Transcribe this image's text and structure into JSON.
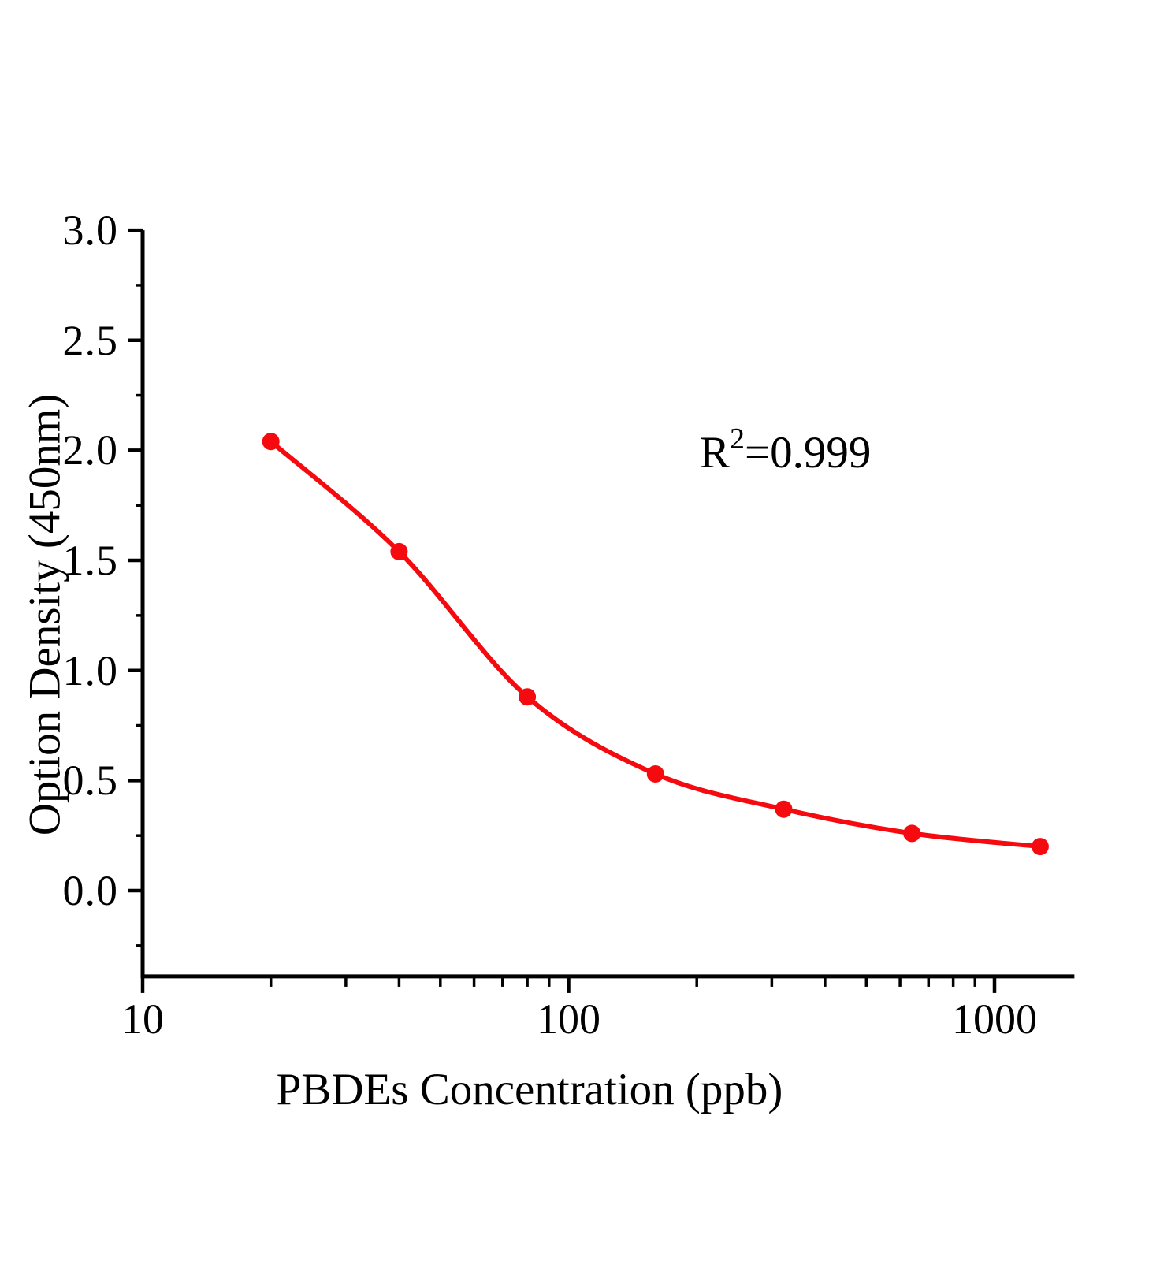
{
  "figure": {
    "background": "#ffffff",
    "axis_color": "#000000"
  },
  "chart_data": {
    "type": "scatter",
    "title": "",
    "xlabel": "PBDEs Concentration（ppb）",
    "ylabel": "Option Density（450nm）",
    "x_scale": "log",
    "xlim": [
      10,
      1540
    ],
    "ylim": [
      -0.39,
      3.0
    ],
    "x_ticks": [
      10,
      100,
      1000
    ],
    "x_tick_labels": [
      "10",
      "100",
      "1000"
    ],
    "y_ticks": [
      3.0,
      2.5,
      2.0,
      1.5,
      1.0,
      0.5,
      0.0
    ],
    "y_tick_labels": [
      "3.0",
      "2.5",
      "2.0",
      "1.5",
      "1.0",
      "0.5",
      "0.0"
    ],
    "x_minor_multiples": [
      2,
      3,
      4,
      5,
      6,
      7,
      8,
      9
    ],
    "y_minor_ticks": [
      2.75,
      2.25,
      1.75,
      1.25,
      0.75,
      0.25,
      -0.25
    ],
    "grid": false,
    "legend": "none",
    "series": [
      {
        "x": [
          20,
          40,
          80,
          160,
          320,
          640,
          1280
        ],
        "y": [
          2.04,
          1.54,
          0.88,
          0.53,
          0.37,
          0.26,
          0.2
        ],
        "marker": "circle",
        "color": "#f40a0f",
        "line": "smooth"
      }
    ],
    "annotation": {
      "base": "R",
      "superscript": "2",
      "rest": "=0.999"
    }
  }
}
